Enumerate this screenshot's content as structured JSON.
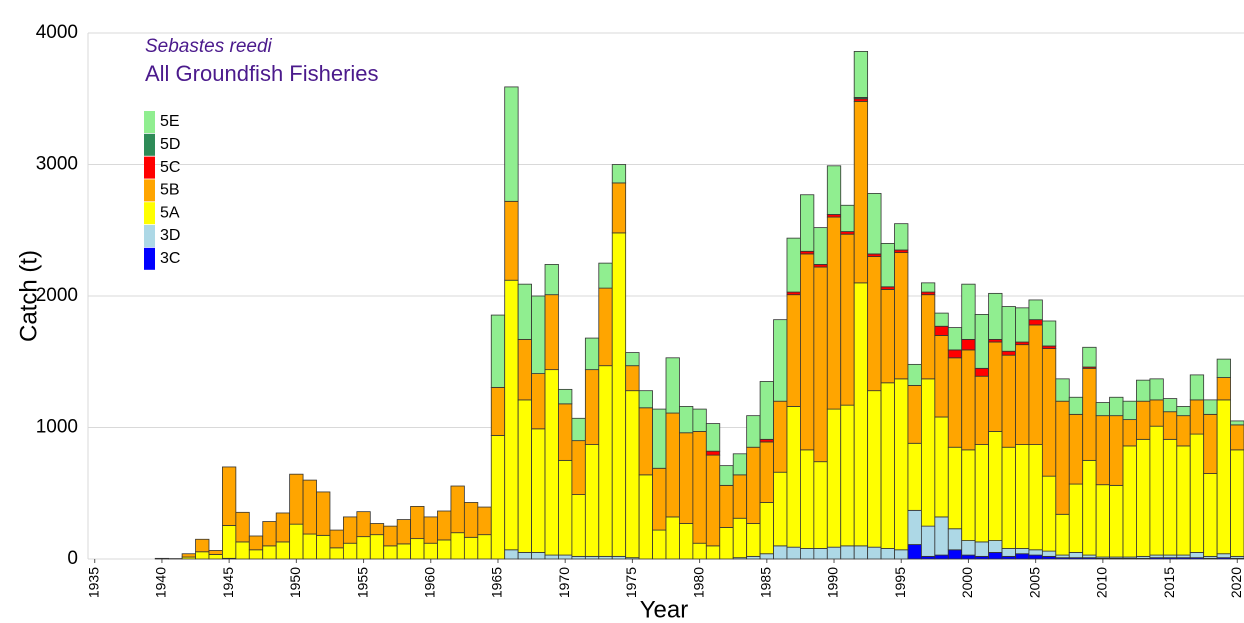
{
  "chart_data": {
    "type": "stacked-bar",
    "subtitle": "Sebastes reedi",
    "title": "All Groundfish Fisheries",
    "x_label": "Year",
    "y_label": "Catch (t)",
    "x": [
      1935,
      1936,
      1937,
      1938,
      1939,
      1940,
      1941,
      1942,
      1943,
      1944,
      1945,
      1946,
      1947,
      1948,
      1949,
      1950,
      1951,
      1952,
      1953,
      1954,
      1955,
      1956,
      1957,
      1958,
      1959,
      1960,
      1961,
      1962,
      1963,
      1964,
      1965,
      1966,
      1967,
      1968,
      1969,
      1970,
      1971,
      1972,
      1973,
      1974,
      1975,
      1976,
      1977,
      1978,
      1979,
      1980,
      1981,
      1982,
      1983,
      1984,
      1985,
      1986,
      1987,
      1988,
      1989,
      1990,
      1991,
      1992,
      1993,
      1994,
      1995,
      1996,
      1997,
      1998,
      1999,
      2000,
      2001,
      2002,
      2003,
      2004,
      2005,
      2006,
      2007,
      2008,
      2009,
      2010,
      2011,
      2012,
      2013,
      2014,
      2015,
      2016,
      2017,
      2018,
      2019,
      2020
    ],
    "xlim": [
      1934.5,
      2020.5
    ],
    "xticks": [
      1935,
      1940,
      1945,
      1950,
      1955,
      1960,
      1965,
      1970,
      1975,
      1980,
      1985,
      1990,
      1995,
      2000,
      2005,
      2010,
      2015,
      2020
    ],
    "ylim": [
      0,
      4000
    ],
    "yticks": [
      0,
      1000,
      2000,
      3000,
      4000
    ],
    "grid": true,
    "legend": "upper left",
    "series": [
      {
        "name": "3C",
        "color": "#0000ff",
        "values": [
          0,
          0,
          0,
          0,
          0,
          0,
          0,
          0,
          0,
          0,
          0,
          0,
          0,
          0,
          0,
          0,
          0,
          0,
          0,
          0,
          0,
          0,
          0,
          0,
          0,
          0,
          0,
          0,
          0,
          0,
          0,
          0,
          0,
          0,
          0,
          0,
          0,
          0,
          0,
          0,
          0,
          0,
          0,
          0,
          0,
          0,
          0,
          0,
          0,
          0,
          0,
          0,
          0,
          0,
          0,
          0,
          0,
          0,
          0,
          0,
          0,
          110,
          20,
          30,
          70,
          30,
          20,
          50,
          20,
          40,
          30,
          20,
          10,
          10,
          10,
          5,
          5,
          5,
          5,
          10,
          10,
          10,
          10,
          5,
          10,
          5
        ]
      },
      {
        "name": "3D",
        "color": "#add8e6",
        "values": [
          0,
          0,
          0,
          0,
          0,
          0,
          0,
          0,
          0,
          0,
          5,
          0,
          0,
          0,
          0,
          0,
          0,
          0,
          0,
          0,
          0,
          0,
          0,
          0,
          0,
          0,
          0,
          0,
          0,
          0,
          0,
          70,
          50,
          50,
          30,
          30,
          20,
          20,
          20,
          20,
          10,
          0,
          0,
          0,
          0,
          0,
          0,
          0,
          10,
          20,
          40,
          100,
          90,
          80,
          80,
          90,
          100,
          100,
          90,
          80,
          70,
          260,
          230,
          290,
          160,
          110,
          110,
          90,
          60,
          40,
          40,
          40,
          20,
          40,
          20,
          10,
          10,
          10,
          15,
          20,
          20,
          20,
          40,
          15,
          30,
          15
        ]
      },
      {
        "name": "5A",
        "color": "#ffff00",
        "values": [
          0,
          0,
          0,
          0,
          0,
          5,
          3,
          15,
          55,
          35,
          250,
          130,
          70,
          100,
          130,
          265,
          190,
          180,
          85,
          120,
          170,
          185,
          100,
          115,
          155,
          120,
          145,
          200,
          165,
          185,
          940,
          2050,
          1160,
          940,
          1410,
          720,
          470,
          850,
          1450,
          2460,
          1270,
          640,
          220,
          320,
          270,
          120,
          100,
          240,
          300,
          250,
          390,
          560,
          1070,
          750,
          660,
          1050,
          1070,
          2000,
          1190,
          1260,
          1300,
          510,
          1120,
          760,
          620,
          690,
          740,
          830,
          770,
          790,
          800,
          570,
          310,
          520,
          720,
          550,
          545,
          845,
          890,
          980,
          880,
          830,
          900,
          630,
          1170,
          810
        ]
      },
      {
        "name": "5B",
        "color": "#ffa500",
        "values": [
          0,
          0,
          0,
          0,
          0,
          0,
          0,
          25,
          95,
          30,
          445,
          225,
          105,
          185,
          220,
          380,
          410,
          330,
          135,
          200,
          190,
          85,
          150,
          185,
          245,
          200,
          220,
          355,
          265,
          210,
          365,
          600,
          460,
          420,
          570,
          430,
          410,
          570,
          590,
          380,
          190,
          510,
          470,
          790,
          690,
          850,
          690,
          320,
          330,
          580,
          460,
          540,
          850,
          1490,
          1480,
          1460,
          1300,
          1380,
          1020,
          710,
          960,
          440,
          640,
          620,
          680,
          760,
          520,
          680,
          700,
          760,
          910,
          970,
          860,
          530,
          700,
          525,
          530,
          200,
          290,
          200,
          210,
          230,
          260,
          450,
          170,
          190
        ]
      },
      {
        "name": "5C",
        "color": "#ff0000",
        "values": [
          0,
          0,
          0,
          0,
          0,
          0,
          0,
          0,
          0,
          0,
          0,
          0,
          0,
          0,
          0,
          0,
          0,
          0,
          0,
          0,
          0,
          0,
          0,
          0,
          0,
          0,
          0,
          0,
          0,
          0,
          0,
          0,
          0,
          0,
          0,
          0,
          0,
          0,
          0,
          0,
          0,
          0,
          0,
          0,
          0,
          0,
          30,
          0,
          0,
          0,
          20,
          0,
          20,
          20,
          20,
          20,
          20,
          20,
          20,
          20,
          20,
          0,
          20,
          70,
          60,
          80,
          60,
          20,
          30,
          20,
          40,
          20,
          0,
          0,
          10,
          0,
          0,
          0,
          0,
          0,
          0,
          0,
          0,
          0,
          0,
          0
        ]
      },
      {
        "name": "5D",
        "color": "#2e8b57",
        "values": [
          0,
          0,
          0,
          0,
          0,
          0,
          0,
          0,
          0,
          0,
          0,
          0,
          0,
          0,
          0,
          0,
          0,
          0,
          0,
          0,
          0,
          0,
          0,
          0,
          0,
          0,
          0,
          0,
          0,
          0,
          0,
          0,
          0,
          0,
          0,
          0,
          0,
          0,
          0,
          0,
          0,
          0,
          0,
          0,
          0,
          0,
          0,
          0,
          0,
          0,
          0,
          0,
          0,
          0,
          0,
          0,
          0,
          10,
          0,
          0,
          0,
          0,
          0,
          0,
          0,
          0,
          0,
          0,
          0,
          0,
          0,
          0,
          0,
          0,
          0,
          0,
          0,
          0,
          0,
          0,
          0,
          0,
          0,
          0,
          0,
          0
        ]
      },
      {
        "name": "5E",
        "color": "#90ee90",
        "values": [
          0,
          0,
          0,
          0,
          0,
          0,
          0,
          0,
          0,
          0,
          0,
          0,
          0,
          0,
          0,
          0,
          0,
          0,
          0,
          0,
          0,
          0,
          0,
          0,
          0,
          0,
          0,
          0,
          0,
          0,
          550,
          870,
          420,
          590,
          230,
          110,
          170,
          240,
          190,
          140,
          100,
          130,
          450,
          420,
          200,
          170,
          210,
          150,
          160,
          240,
          440,
          620,
          410,
          430,
          280,
          370,
          200,
          350,
          460,
          330,
          200,
          160,
          70,
          100,
          170,
          420,
          410,
          350,
          340,
          260,
          150,
          190,
          170,
          130,
          150,
          100,
          140,
          140,
          160,
          160,
          100,
          70,
          190,
          110,
          140,
          30
        ]
      }
    ]
  }
}
